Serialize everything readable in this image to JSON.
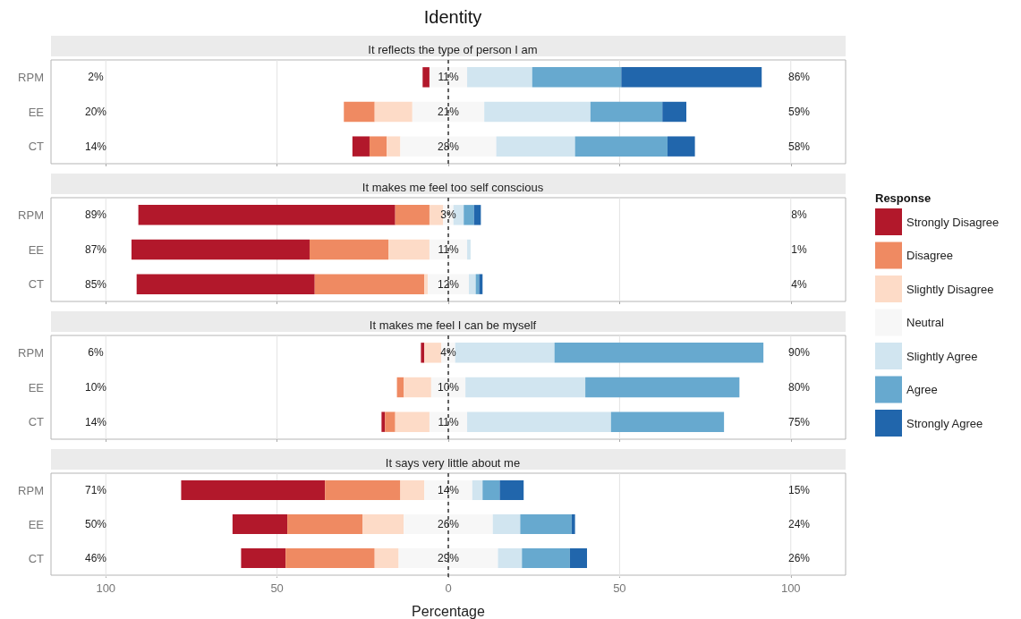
{
  "chart_data": [
    {
      "type": "bar",
      "orientation": "horizontal",
      "title": "Identity",
      "subtitle": "It reflects the type of person I am",
      "legend_title": "Response",
      "legend": "right",
      "categories": [
        "RPM",
        "EE",
        "CT"
      ],
      "xlim": [
        -116,
        116
      ],
      "tick_labels": "y",
      "grid": "x",
      "series": [
        {
          "name": "Strongly Disagree",
          "color": "#b2182b",
          "values": [
            2,
            null,
            5
          ],
          "base": [
            -7.5,
            null,
            -28
          ]
        },
        {
          "name": "Disagree",
          "color": "#ef8a62",
          "values": [
            null,
            9,
            5
          ],
          "base": [
            null,
            -30.5,
            -23
          ]
        },
        {
          "name": "Slightly Disagree",
          "color": "#fddbc7",
          "values": [
            null,
            11,
            4
          ],
          "base": [
            null,
            -21.5,
            -18
          ]
        },
        {
          "name": "Neutral",
          "color": "#f7f7f7",
          "values": [
            11,
            21,
            28
          ],
          "base": [
            -5.5,
            -10.5,
            -14
          ],
          "value_labels": [
            "11%",
            "21%",
            "28%"
          ]
        },
        {
          "name": "Slightly Agree",
          "color": "#d1e5f0",
          "values": [
            19,
            31,
            23
          ],
          "base": [
            5.5,
            10.5,
            14
          ]
        },
        {
          "name": "Agree",
          "color": "#67a9cf",
          "values": [
            26,
            21,
            27
          ],
          "base": [
            24.5,
            41.5,
            37
          ]
        },
        {
          "name": "Strongly Agree",
          "color": "#2166ac",
          "values": [
            41,
            7,
            8
          ],
          "base": [
            50.5,
            62.5,
            64
          ]
        }
      ],
      "ref_lines": [
        {
          "axis": "x",
          "value": 0,
          "line_style": "dashed"
        }
      ],
      "annotations": [
        "2%",
        "20%",
        "14%",
        "86%",
        "59%",
        "58%"
      ]
    },
    {
      "type": "bar",
      "orientation": "horizontal",
      "subtitle": "It makes me feel too self conscious",
      "categories": [
        "RPM",
        "EE",
        "CT"
      ],
      "xlim": [
        -116,
        116
      ],
      "tick_labels": "y",
      "grid": "x",
      "series": [
        {
          "color": "#b2182b",
          "values": [
            75,
            52,
            52
          ],
          "base": [
            -90.5,
            -92.5,
            -91
          ]
        },
        {
          "color": "#ef8a62",
          "values": [
            10,
            23,
            32
          ],
          "base": [
            -15.5,
            -40.5,
            -39
          ]
        },
        {
          "color": "#fddbc7",
          "values": [
            4,
            12,
            1
          ],
          "base": [
            -5.5,
            -17.5,
            -7
          ]
        },
        {
          "color": "#f7f7f7",
          "values": [
            3,
            11,
            12
          ],
          "base": [
            -1.5,
            -5.5,
            -6
          ],
          "value_labels": [
            "3%",
            "11%",
            "12%"
          ]
        },
        {
          "color": "#d1e5f0",
          "values": [
            3,
            1,
            2
          ],
          "base": [
            1.5,
            5.5,
            6
          ]
        },
        {
          "color": "#67a9cf",
          "values": [
            3,
            null,
            1
          ],
          "base": [
            4.5,
            null,
            8
          ]
        },
        {
          "color": "#2166ac",
          "values": [
            2,
            null,
            1
          ],
          "base": [
            7.5,
            null,
            9
          ]
        }
      ],
      "ref_lines": [
        {
          "axis": "x",
          "value": 0,
          "line_style": "dashed"
        }
      ],
      "annotations": [
        "89%",
        "87%",
        "85%",
        "8%",
        "1%",
        "4%"
      ]
    },
    {
      "type": "bar",
      "orientation": "horizontal",
      "subtitle": "It makes me feel I can be myself",
      "categories": [
        "RPM",
        "EE",
        "CT"
      ],
      "xlim": [
        -116,
        116
      ],
      "tick_labels": "y",
      "grid": "x",
      "series": [
        {
          "color": "#b2182b",
          "values": [
            1,
            null,
            1
          ],
          "base": [
            -8,
            null,
            -19.5
          ]
        },
        {
          "color": "#ef8a62",
          "values": [
            null,
            2,
            3
          ],
          "base": [
            null,
            -15,
            -18.5
          ]
        },
        {
          "color": "#fddbc7",
          "values": [
            5,
            8,
            10
          ],
          "base": [
            -7,
            -13,
            -15.5
          ]
        },
        {
          "color": "#f7f7f7",
          "values": [
            4,
            10,
            11
          ],
          "base": [
            -2,
            -5,
            -5.5
          ],
          "value_labels": [
            "4%",
            "10%",
            "11%"
          ]
        },
        {
          "color": "#d1e5f0",
          "values": [
            29,
            35,
            42
          ],
          "base": [
            2,
            5,
            5.5
          ]
        },
        {
          "color": "#67a9cf",
          "values": [
            61,
            45,
            33
          ],
          "base": [
            31,
            40,
            47.5
          ]
        }
      ],
      "ref_lines": [
        {
          "axis": "x",
          "value": 0,
          "line_style": "dashed"
        }
      ],
      "annotations": [
        "6%",
        "10%",
        "14%",
        "90%",
        "80%",
        "75%"
      ]
    },
    {
      "type": "bar",
      "orientation": "horizontal",
      "subtitle": "It says very little about me",
      "xlabel": "Percentage",
      "categories": [
        "RPM",
        "EE",
        "CT"
      ],
      "xlim": [
        -116,
        116
      ],
      "xticks": [
        {
          "value": -100,
          "label": "100"
        },
        {
          "value": -50,
          "label": "50"
        },
        0,
        50,
        100
      ],
      "grid": "x",
      "series": [
        {
          "color": "#b2182b",
          "values": [
            42,
            16,
            13
          ],
          "base": [
            -78,
            -63,
            -60.5
          ]
        },
        {
          "color": "#ef8a62",
          "values": [
            22,
            22,
            26
          ],
          "base": [
            -36,
            -47,
            -47.5
          ]
        },
        {
          "color": "#fddbc7",
          "values": [
            7,
            12,
            7
          ],
          "base": [
            -14,
            -25,
            -21.5
          ]
        },
        {
          "color": "#f7f7f7",
          "values": [
            14,
            26,
            29
          ],
          "base": [
            -7,
            -13,
            -14.5
          ],
          "value_labels": [
            "14%",
            "26%",
            "29%"
          ]
        },
        {
          "color": "#d1e5f0",
          "values": [
            3,
            8,
            7
          ],
          "base": [
            7,
            13,
            14.5
          ]
        },
        {
          "color": "#67a9cf",
          "values": [
            5,
            15,
            14
          ],
          "base": [
            10,
            21,
            21.5
          ]
        },
        {
          "color": "#2166ac",
          "values": [
            7,
            1,
            5
          ],
          "base": [
            15,
            36,
            35.5
          ]
        }
      ],
      "ref_lines": [
        {
          "axis": "x",
          "value": 0,
          "line_style": "dashed"
        }
      ],
      "annotations": [
        "71%",
        "50%",
        "46%",
        "15%",
        "24%",
        "26%"
      ]
    }
  ]
}
